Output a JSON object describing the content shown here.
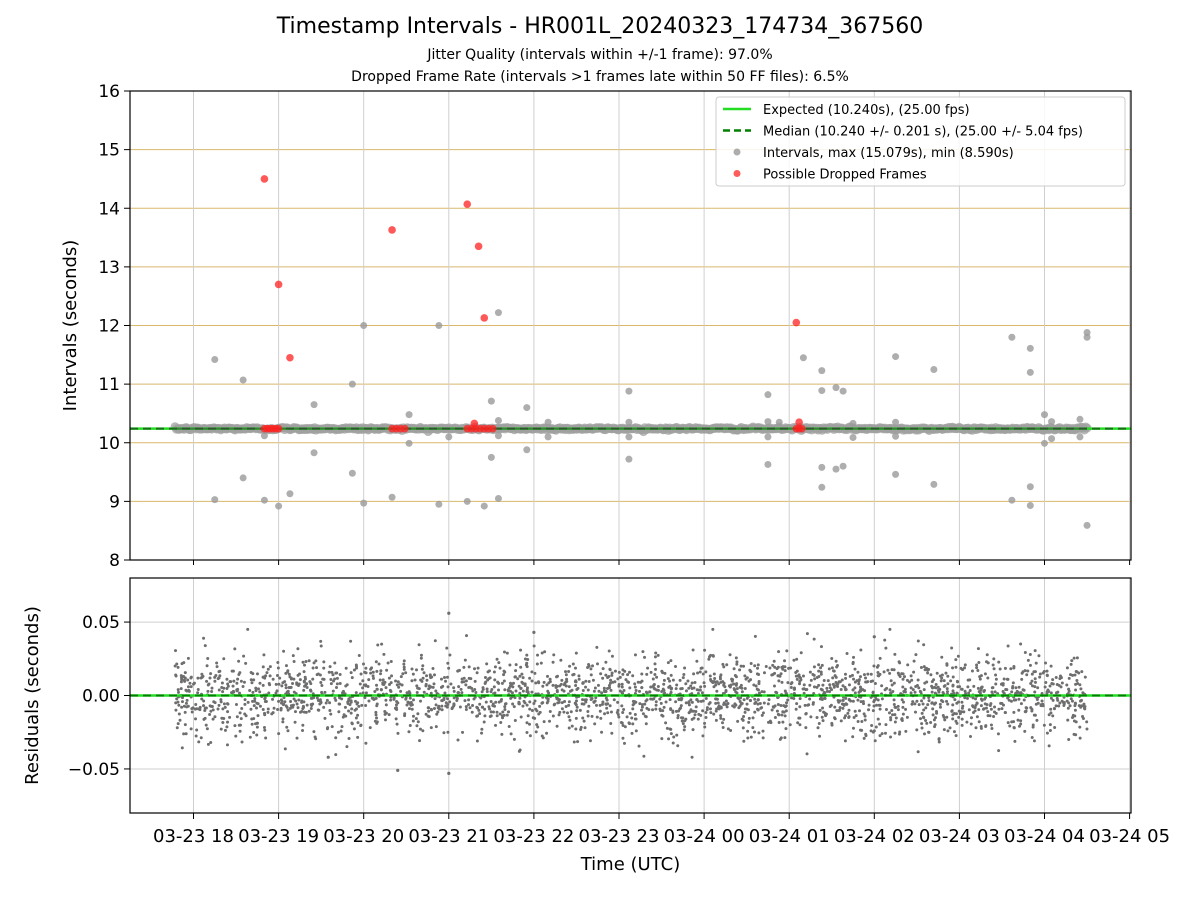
{
  "header": {
    "title": "Timestamp Intervals - HR001L_20240323_174734_367560",
    "subtitle1": "Jitter Quality (intervals within +/-1 frame): 97.0%",
    "subtitle2": "Dropped Frame Rate (intervals >1 frames late within 50 FF files): 6.5%"
  },
  "chart_data": [
    {
      "type": "scatter",
      "title": "Timestamp Intervals - HR001L_20240323_174734_367560",
      "ylabel": "Intervals (seconds)",
      "xlabel": "",
      "x_range_hours_utc": [
        "2024-03-23 17:15",
        "2024-03-24 05:00"
      ],
      "ylim": [
        8,
        16
      ],
      "yticks": [
        8,
        9,
        10,
        11,
        12,
        13,
        14,
        15,
        16
      ],
      "xticks": [
        "03-23 18",
        "03-23 19",
        "03-23 20",
        "03-23 21",
        "03-23 22",
        "03-23 23",
        "03-24 00",
        "03-24 01",
        "03-24 02",
        "03-24 03",
        "03-24 04",
        "03-24 05"
      ],
      "grid": "horizontal gold lines, vertical grey lines",
      "legend_position": "top-right",
      "legend": [
        {
          "label": "Expected (10.240s), (25.00 fps)",
          "style": "solid line",
          "color": "#22dd22"
        },
        {
          "label": "Median (10.240 +/- 0.201 s), (25.00 +/- 5.04 fps)",
          "style": "dashed line",
          "color": "#008000"
        },
        {
          "label": "Intervals, max (15.079s), min (8.590s)",
          "style": "marker",
          "color": "#999999"
        },
        {
          "label": "Possible Dropped Frames",
          "style": "marker",
          "color": "#ff3333"
        }
      ],
      "expected_interval": 10.24,
      "median_interval": 10.24,
      "interval_base": 10.24,
      "interval_time_span": [
        "2024-03-23 17:47",
        "2024-03-24 04:30"
      ],
      "outliers": [
        {
          "t": "2024-03-23 18:15",
          "y": 11.42
        },
        {
          "t": "2024-03-23 18:15",
          "y": 9.03
        },
        {
          "t": "2024-03-23 18:35",
          "y": 11.07
        },
        {
          "t": "2024-03-23 18:35",
          "y": 9.4
        },
        {
          "t": "2024-03-23 18:50",
          "y": 9.02
        },
        {
          "t": "2024-03-23 18:50",
          "y": 10.12
        },
        {
          "t": "2024-03-23 19:00",
          "y": 8.92
        },
        {
          "t": "2024-03-23 19:08",
          "y": 9.13
        },
        {
          "t": "2024-03-23 19:25",
          "y": 10.65
        },
        {
          "t": "2024-03-23 19:25",
          "y": 9.83
        },
        {
          "t": "2024-03-23 19:52",
          "y": 11.0
        },
        {
          "t": "2024-03-23 19:52",
          "y": 9.48
        },
        {
          "t": "2024-03-23 20:00",
          "y": 12.0
        },
        {
          "t": "2024-03-23 20:00",
          "y": 8.97
        },
        {
          "t": "2024-03-23 20:20",
          "y": 9.07
        },
        {
          "t": "2024-03-23 20:32",
          "y": 10.48
        },
        {
          "t": "2024-03-23 20:32",
          "y": 9.99
        },
        {
          "t": "2024-03-23 20:53",
          "y": 12.0
        },
        {
          "t": "2024-03-23 20:53",
          "y": 8.95
        },
        {
          "t": "2024-03-23 21:00",
          "y": 10.1
        },
        {
          "t": "2024-03-23 21:13",
          "y": 9.0
        },
        {
          "t": "2024-03-23 21:25",
          "y": 8.92
        },
        {
          "t": "2024-03-23 21:30",
          "y": 10.71
        },
        {
          "t": "2024-03-23 21:30",
          "y": 9.75
        },
        {
          "t": "2024-03-23 21:35",
          "y": 12.22
        },
        {
          "t": "2024-03-23 21:35",
          "y": 9.05
        },
        {
          "t": "2024-03-23 21:35",
          "y": 10.38
        },
        {
          "t": "2024-03-23 21:35",
          "y": 10.12
        },
        {
          "t": "2024-03-23 21:55",
          "y": 10.6
        },
        {
          "t": "2024-03-23 21:55",
          "y": 9.88
        },
        {
          "t": "2024-03-23 22:10",
          "y": 10.35
        },
        {
          "t": "2024-03-23 22:10",
          "y": 10.1
        },
        {
          "t": "2024-03-23 23:07",
          "y": 10.88
        },
        {
          "t": "2024-03-23 23:07",
          "y": 9.72
        },
        {
          "t": "2024-03-23 23:07",
          "y": 10.35
        },
        {
          "t": "2024-03-23 23:07",
          "y": 10.1
        },
        {
          "t": "2024-03-24 00:45",
          "y": 10.82
        },
        {
          "t": "2024-03-24 00:45",
          "y": 9.63
        },
        {
          "t": "2024-03-24 00:45",
          "y": 10.36
        },
        {
          "t": "2024-03-24 00:45",
          "y": 10.1
        },
        {
          "t": "2024-03-24 00:53",
          "y": 10.35
        },
        {
          "t": "2024-03-24 01:10",
          "y": 11.45
        },
        {
          "t": "2024-03-24 01:23",
          "y": 11.23
        },
        {
          "t": "2024-03-24 01:23",
          "y": 10.89
        },
        {
          "t": "2024-03-24 01:23",
          "y": 9.58
        },
        {
          "t": "2024-03-24 01:23",
          "y": 9.24
        },
        {
          "t": "2024-03-24 01:33",
          "y": 10.94
        },
        {
          "t": "2024-03-24 01:33",
          "y": 9.55
        },
        {
          "t": "2024-03-24 01:38",
          "y": 10.88
        },
        {
          "t": "2024-03-24 01:38",
          "y": 9.6
        },
        {
          "t": "2024-03-24 01:45",
          "y": 10.33
        },
        {
          "t": "2024-03-24 01:45",
          "y": 10.09
        },
        {
          "t": "2024-03-24 02:15",
          "y": 11.47
        },
        {
          "t": "2024-03-24 02:15",
          "y": 9.46
        },
        {
          "t": "2024-03-24 02:15",
          "y": 10.35
        },
        {
          "t": "2024-03-24 02:15",
          "y": 10.11
        },
        {
          "t": "2024-03-24 02:42",
          "y": 11.25
        },
        {
          "t": "2024-03-24 02:42",
          "y": 9.29
        },
        {
          "t": "2024-03-24 03:37",
          "y": 11.8
        },
        {
          "t": "2024-03-24 03:37",
          "y": 9.02
        },
        {
          "t": "2024-03-24 03:50",
          "y": 11.61
        },
        {
          "t": "2024-03-24 03:50",
          "y": 11.2
        },
        {
          "t": "2024-03-24 03:50",
          "y": 9.25
        },
        {
          "t": "2024-03-24 03:50",
          "y": 8.93
        },
        {
          "t": "2024-03-24 04:00",
          "y": 10.48
        },
        {
          "t": "2024-03-24 04:00",
          "y": 9.99
        },
        {
          "t": "2024-03-24 04:05",
          "y": 10.36
        },
        {
          "t": "2024-03-24 04:05",
          "y": 10.07
        },
        {
          "t": "2024-03-24 04:25",
          "y": 10.4
        },
        {
          "t": "2024-03-24 04:25",
          "y": 10.1
        },
        {
          "t": "2024-03-24 04:30",
          "y": 11.88
        },
        {
          "t": "2024-03-24 04:30",
          "y": 11.8
        },
        {
          "t": "2024-03-24 04:30",
          "y": 8.59
        }
      ],
      "dropped_frames": [
        {
          "t": "2024-03-23 18:50",
          "y": 14.5
        },
        {
          "t": "2024-03-23 19:00",
          "y": 12.7
        },
        {
          "t": "2024-03-23 19:08",
          "y": 11.45
        },
        {
          "t": "2024-03-23 20:20",
          "y": 13.63
        },
        {
          "t": "2024-03-23 21:13",
          "y": 14.07
        },
        {
          "t": "2024-03-23 21:21",
          "y": 13.35
        },
        {
          "t": "2024-03-23 21:25",
          "y": 12.13
        },
        {
          "t": "2024-03-23 21:18",
          "y": 10.33
        },
        {
          "t": "2024-03-24 01:05",
          "y": 12.05
        },
        {
          "t": "2024-03-24 01:07",
          "y": 10.35
        },
        {
          "t": "2024-03-23 18:50",
          "y": 10.24
        },
        {
          "t": "2024-03-23 18:52",
          "y": 10.24
        },
        {
          "t": "2024-03-23 18:54",
          "y": 10.24
        },
        {
          "t": "2024-03-23 18:56",
          "y": 10.24
        },
        {
          "t": "2024-03-23 18:58",
          "y": 10.24
        },
        {
          "t": "2024-03-23 19:00",
          "y": 10.24
        },
        {
          "t": "2024-03-23 20:20",
          "y": 10.24
        },
        {
          "t": "2024-03-23 20:23",
          "y": 10.24
        },
        {
          "t": "2024-03-23 20:26",
          "y": 10.24
        },
        {
          "t": "2024-03-23 20:29",
          "y": 10.24
        },
        {
          "t": "2024-03-23 21:13",
          "y": 10.24
        },
        {
          "t": "2024-03-23 21:16",
          "y": 10.24
        },
        {
          "t": "2024-03-23 21:19",
          "y": 10.24
        },
        {
          "t": "2024-03-23 21:22",
          "y": 10.24
        },
        {
          "t": "2024-03-23 21:25",
          "y": 10.24
        },
        {
          "t": "2024-03-23 21:28",
          "y": 10.24
        },
        {
          "t": "2024-03-23 21:31",
          "y": 10.24
        },
        {
          "t": "2024-03-24 01:05",
          "y": 10.24
        },
        {
          "t": "2024-03-24 01:07",
          "y": 10.24
        },
        {
          "t": "2024-03-24 01:09",
          "y": 10.24
        }
      ]
    },
    {
      "type": "scatter",
      "ylabel": "Residuals (seconds)",
      "xlabel": "Time (UTC)",
      "ylim": [
        -0.08,
        0.08
      ],
      "yticks": [
        0.05,
        0.0,
        -0.05
      ],
      "ytick_labels": [
        "0.05",
        "0.00",
        "−0.05"
      ],
      "xticks": [
        "03-23 18",
        "03-23 19",
        "03-23 20",
        "03-23 21",
        "03-23 22",
        "03-23 23",
        "03-24 00",
        "03-24 01",
        "03-24 02",
        "03-24 03",
        "03-24 04",
        "03-24 05"
      ],
      "grid": "light grey lines",
      "residual_spread_std": 0.014,
      "residual_extremes": [
        {
          "t": "2024-03-23 21:00",
          "y": 0.056
        },
        {
          "t": "2024-03-23 21:00",
          "y": -0.053
        },
        {
          "t": "2024-03-23 20:24",
          "y": -0.051
        },
        {
          "t": "2024-03-23 19:35",
          "y": -0.042
        },
        {
          "t": "2024-03-23 22:00",
          "y": 0.043
        },
        {
          "t": "2024-03-24 02:00",
          "y": 0.04
        }
      ],
      "zero_lines": [
        {
          "label": "Expected",
          "color": "#22dd22"
        },
        {
          "label": "Median",
          "color": "#008000"
        }
      ]
    }
  ]
}
